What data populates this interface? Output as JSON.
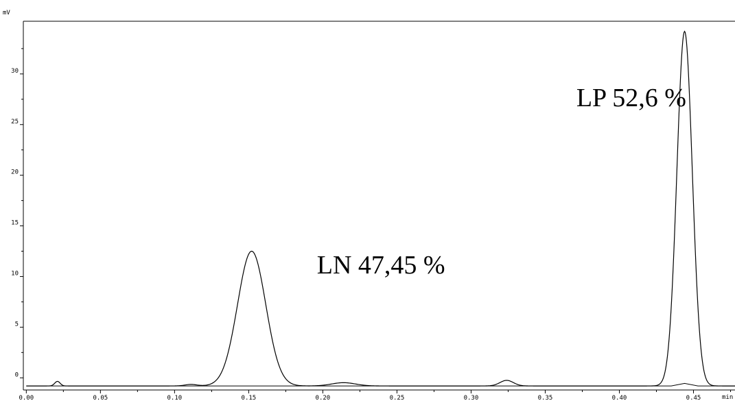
{
  "chart_data": {
    "type": "line",
    "y_unit": "mV",
    "x_unit": "min",
    "xlim": [
      -0.002,
      0.478
    ],
    "ylim": [
      -1.2,
      35.2
    ],
    "x_ticks": [
      "0.00",
      "0.05",
      "0.10",
      "0.15",
      "0.20",
      "0.25",
      "0.30",
      "0.35",
      "0.40",
      "0.45"
    ],
    "y_ticks": [
      "0",
      "5",
      "10",
      "15",
      "20",
      "25",
      "30"
    ],
    "grid": false,
    "baseline": -0.8,
    "signal_peaks": [
      {
        "center": 0.021,
        "height": 0.45,
        "width": 0.0018
      },
      {
        "center": 0.111,
        "height": 0.15,
        "width": 0.004
      },
      {
        "center": 0.152,
        "height": 13.3,
        "width": 0.0095
      },
      {
        "center": 0.214,
        "height": 0.32,
        "width": 0.008
      },
      {
        "center": 0.324,
        "height": 0.55,
        "width": 0.0045
      },
      {
        "center": 0.444,
        "height": 35.0,
        "width": 0.0052
      }
    ],
    "blank_trace": [
      {
        "x": 0.0,
        "y": -0.8
      },
      {
        "x": 0.435,
        "y": -0.8
      },
      {
        "x": 0.444,
        "y": -0.55
      },
      {
        "x": 0.453,
        "y": -0.8
      },
      {
        "x": 0.478,
        "y": -0.8
      }
    ],
    "annotations": [
      {
        "id": "ln",
        "text": "LN 47,45 %",
        "x": 0.196,
        "y": 10.3
      },
      {
        "id": "lp",
        "text": "LP 52,6 %",
        "x": 0.371,
        "y": 26.8
      }
    ],
    "colors": {
      "line": "#000000",
      "axis": "#000000",
      "background": "#ffffff"
    }
  }
}
